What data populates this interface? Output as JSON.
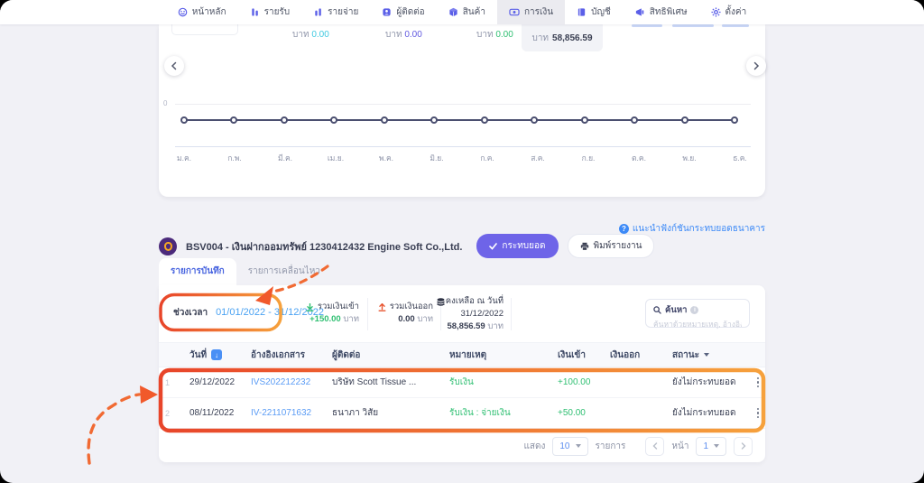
{
  "nav": {
    "items": [
      {
        "label": "หน้าหลัก",
        "icon": "home-icon",
        "active": false
      },
      {
        "label": "รายรับ",
        "icon": "income-icon",
        "active": false
      },
      {
        "label": "รายจ่าย",
        "icon": "expense-icon",
        "active": false
      },
      {
        "label": "ผู้ติดต่อ",
        "icon": "contacts-icon",
        "active": false
      },
      {
        "label": "สินค้า",
        "icon": "products-icon",
        "active": false
      },
      {
        "label": "การเงิน",
        "icon": "finance-icon",
        "active": true
      },
      {
        "label": "บัญชี",
        "icon": "accounting-icon",
        "active": false
      },
      {
        "label": "สิทธิพิเศษ",
        "icon": "privileges-icon",
        "active": false
      },
      {
        "label": "ตั้งค่า",
        "icon": "settings-icon",
        "active": false
      }
    ]
  },
  "summary": {
    "stats": [
      {
        "unit": "บาท",
        "value": "0.00"
      },
      {
        "unit": "บาท",
        "value": "0.00"
      },
      {
        "unit": "บาท",
        "value": "0.00"
      },
      {
        "unit": "บาท",
        "value": "58,856.59"
      }
    ]
  },
  "chart_data": {
    "type": "line",
    "categories": [
      "ม.ค.",
      "ก.พ.",
      "มี.ค.",
      "เม.ย.",
      "พ.ค.",
      "มิ.ย.",
      "ก.ค.",
      "ส.ค.",
      "ก.ย.",
      "ต.ค.",
      "พ.ย.",
      "ธ.ค."
    ],
    "series": [
      {
        "values": [
          0,
          0,
          0,
          0,
          0,
          0,
          0,
          0,
          0,
          0,
          0,
          0
        ]
      }
    ],
    "y_tick_labels": [
      "0"
    ],
    "ylim": [
      0,
      0
    ],
    "grid": true,
    "legend": false
  },
  "help": {
    "label": "แนะนำฟังก์ชันกระทบยอดธนาคาร"
  },
  "account": {
    "title": "BSV004 - เงินฝากออมทรัพย์ 1230412432 Engine Soft Co.,Ltd.",
    "reconcile_label": "กระทบยอด",
    "print_label": "พิมพ์รายงาน"
  },
  "tabs": [
    {
      "label": "รายการบันทึก",
      "active": true
    },
    {
      "label": "รายการเคลื่อนไหว",
      "active": false
    }
  ],
  "filters": {
    "period_label": "ช่วงเวลา",
    "period_value": "01/01/2022 - 31/12/2022",
    "total_in_label": "รวมเงินเข้า",
    "total_in_value": "+150.00",
    "total_in_unit": "บาท",
    "total_out_label": "รวมเงินออก",
    "total_out_value": "0.00",
    "total_out_unit": "บาท",
    "balance_label": "คงเหลือ ณ วันที่",
    "balance_date": "31/12/2022",
    "balance_value": "58,856.59",
    "balance_unit": "บาท",
    "search_label": "ค้นหา",
    "search_placeholder": "ค้นหาด้วยหมายเหตุ, อ้างอิงเอกสาร"
  },
  "table": {
    "headers": {
      "date": "วันที่",
      "ref": "อ้างอิงเอกสาร",
      "contact": "ผู้ติดต่อ",
      "note": "หมายเหตุ",
      "money_in": "เงินเข้า",
      "money_out": "เงินออก",
      "status": "สถานะ"
    },
    "rows": [
      {
        "num": "1",
        "date": "29/12/2022",
        "ref": "IVS202212232",
        "contact": "บริษัท Scott Tissue ...",
        "note": "รับเงิน",
        "money_in": "+100.00",
        "money_out": "",
        "status": "ยังไม่กระทบยอด"
      },
      {
        "num": "2",
        "date": "08/11/2022",
        "ref": "IV-2211071632",
        "contact": "ธนาภา วิสัย",
        "note": "รับเงิน : จ่ายเงิน",
        "money_in": "+50.00",
        "money_out": "",
        "status": "ยังไม่กระทบยอด"
      }
    ]
  },
  "pagination": {
    "show_label": "แสดง",
    "per_page": "10",
    "items_label": "รายการ",
    "page_label": "หน้า",
    "page": "1"
  },
  "colors": {
    "accent_purple": "#6e64e8",
    "annotation_orange": "#f1592b",
    "link_blue": "#3d8af7",
    "date_blue": "#4aa2f2",
    "green": "#2fbf72",
    "red": "#e8542f",
    "cyan": "#3fc9e0",
    "purple": "#6159e0",
    "chart_line": "#4b4f70"
  }
}
